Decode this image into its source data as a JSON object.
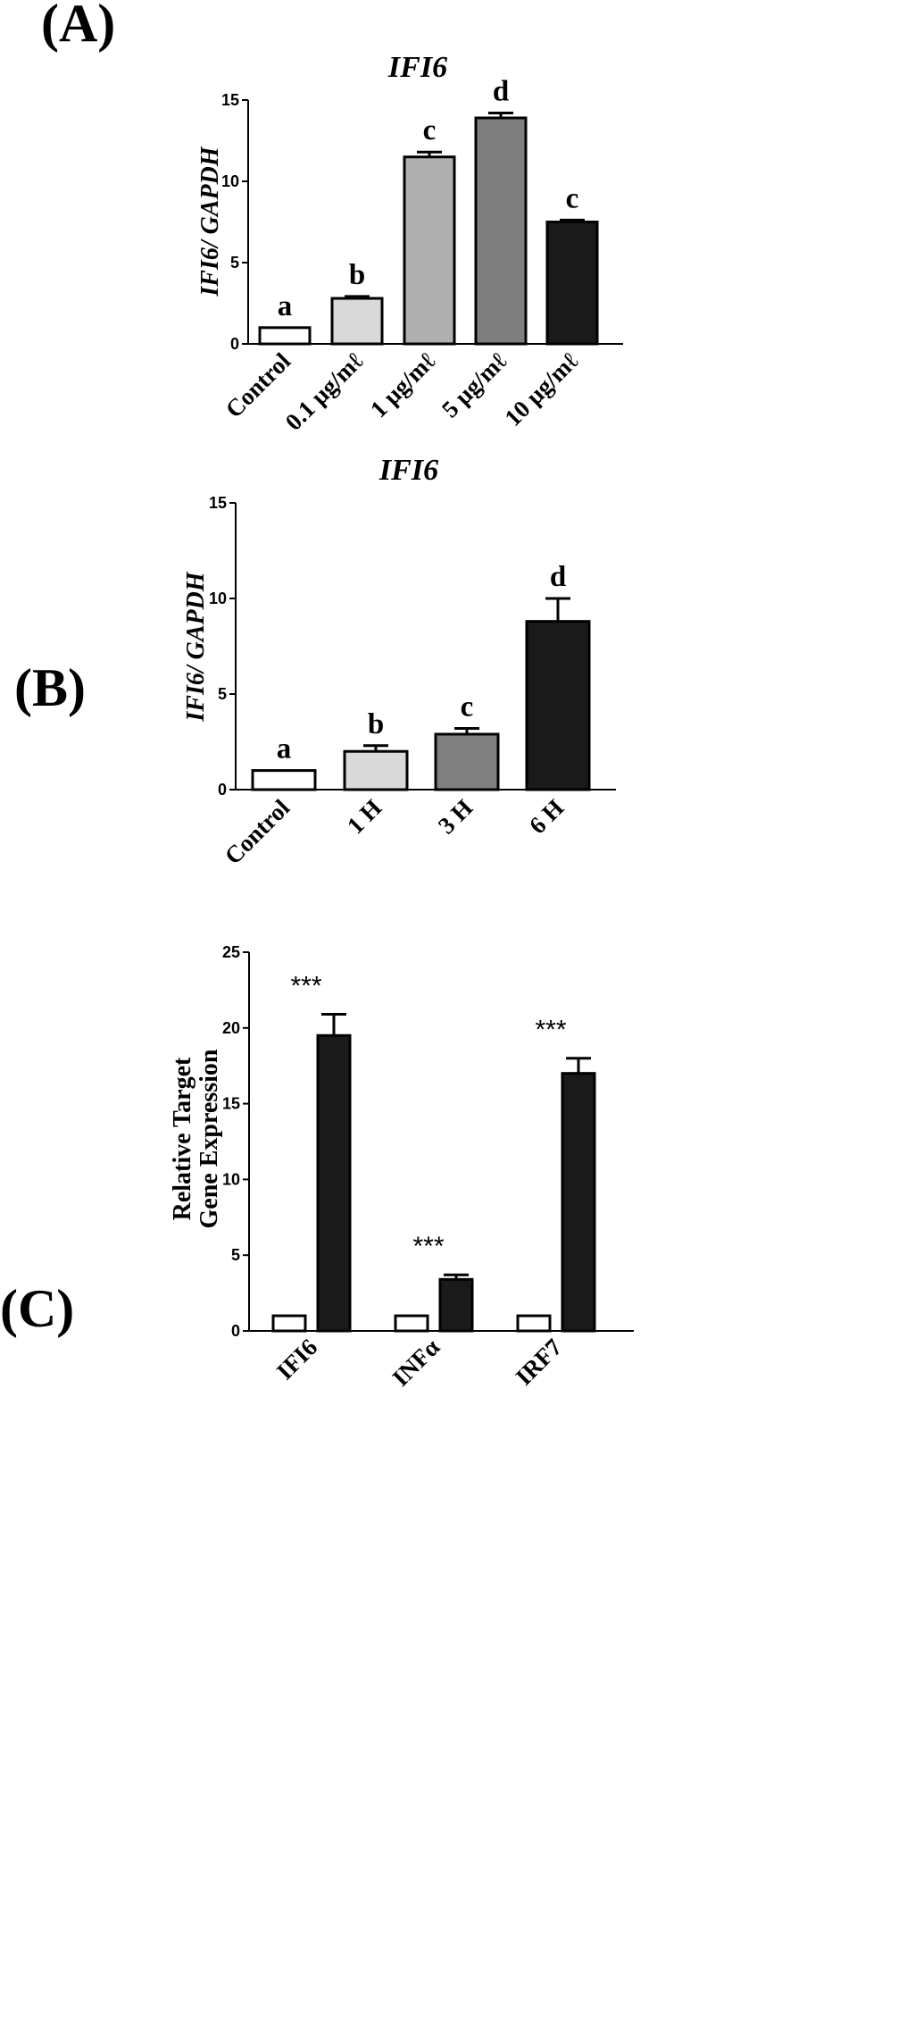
{
  "chart_data": [
    {
      "panel_label": "(A)",
      "type": "bar",
      "title": "IFI6",
      "ylabel": "IFI6/ GAPDH",
      "xlabel": "",
      "ylim": [
        0,
        15
      ],
      "yticks": [
        0,
        5,
        10,
        15
      ],
      "categories": [
        "Control",
        "0.1 μg/mℓ",
        "1 μg/mℓ",
        "5 μg/mℓ",
        "10 μg/mℓ"
      ],
      "values": [
        1.0,
        2.8,
        11.5,
        13.9,
        7.5
      ],
      "errors": [
        0.0,
        0.12,
        0.3,
        0.3,
        0.12
      ],
      "letters": [
        "a",
        "b",
        "c",
        "d",
        "c"
      ],
      "colors": [
        "#ffffff",
        "#d9d9d9",
        "#b0b0b0",
        "#7f7f7f",
        "#1a1a1a"
      ]
    },
    {
      "panel_label": "(B)",
      "type": "bar",
      "title": "IFI6",
      "ylabel": "IFI6/ GAPDH",
      "xlabel": "",
      "ylim": [
        0,
        15
      ],
      "yticks": [
        0,
        5,
        10,
        15
      ],
      "categories": [
        "Control",
        "1 H",
        "3 H",
        "6 H"
      ],
      "values": [
        1.0,
        2.0,
        2.9,
        8.8
      ],
      "errors": [
        0.0,
        0.3,
        0.3,
        1.2
      ],
      "letters": [
        "a",
        "b",
        "c",
        "d"
      ],
      "colors": [
        "#ffffff",
        "#d9d9d9",
        "#808080",
        "#1a1a1a"
      ]
    },
    {
      "panel_label": "(C)",
      "type": "bar",
      "title": "",
      "ylabel": "Relative Target Gene Expression",
      "ylabel_lines": [
        "Relative Target",
        "Gene Expression"
      ],
      "xlabel": "",
      "ylim": [
        0,
        25
      ],
      "yticks": [
        0,
        5,
        10,
        15,
        20,
        25
      ],
      "categories": [
        "IFI6",
        "INFα",
        "IRF7"
      ],
      "series": [
        {
          "values": [
            1.0,
            1.0,
            1.0
          ],
          "errors": [
            0,
            0,
            0
          ],
          "color": "#ffffff"
        },
        {
          "values": [
            19.5,
            3.4,
            17.0
          ],
          "errors": [
            1.4,
            0.3,
            1.0
          ],
          "color": "#1a1a1a"
        }
      ],
      "significance": [
        "***",
        "***",
        "***"
      ]
    }
  ]
}
